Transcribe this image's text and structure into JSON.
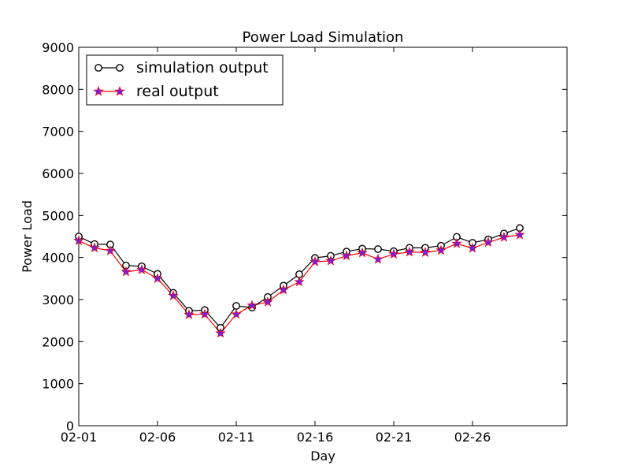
{
  "chart_data": {
    "type": "line",
    "title": "Power Load Simulation",
    "xlabel": "Day",
    "ylabel": "Power Load",
    "x": [
      "02-01",
      "02-02",
      "02-03",
      "02-04",
      "02-05",
      "02-06",
      "02-07",
      "02-08",
      "02-09",
      "02-10",
      "02-11",
      "02-12",
      "02-13",
      "02-14",
      "02-15",
      "02-16",
      "02-17",
      "02-18",
      "02-19",
      "02-20",
      "02-21",
      "02-22",
      "02-23",
      "02-24",
      "02-25",
      "02-26",
      "02-27",
      "02-28",
      "02-29"
    ],
    "xlim": [
      "02-01",
      "03-03"
    ],
    "x_ticks": [
      "02-01",
      "02-06",
      "02-11",
      "02-16",
      "02-21",
      "02-26"
    ],
    "ylim": [
      0,
      9000
    ],
    "y_ticks": [
      0,
      1000,
      2000,
      3000,
      4000,
      5000,
      6000,
      7000,
      8000,
      9000
    ],
    "grid": false,
    "legend_position": "top-left",
    "series": [
      {
        "name": "simulation output",
        "color": "#000000",
        "marker": "circle",
        "values": [
          4500,
          4320,
          4310,
          3810,
          3790,
          3610,
          3160,
          2730,
          2750,
          2330,
          2850,
          2810,
          3060,
          3330,
          3600,
          3990,
          4040,
          4140,
          4210,
          4200,
          4150,
          4230,
          4230,
          4280,
          4490,
          4350,
          4430,
          4570,
          4700
        ]
      },
      {
        "name": "real output",
        "color": "#ff0000",
        "marker": "star",
        "marker_color": "#7b1fd6",
        "values": [
          4400,
          4230,
          4160,
          3660,
          3710,
          3500,
          3090,
          2640,
          2650,
          2200,
          2650,
          2860,
          2940,
          3230,
          3420,
          3900,
          3920,
          4040,
          4110,
          3960,
          4080,
          4130,
          4120,
          4170,
          4330,
          4220,
          4360,
          4480,
          4540
        ]
      }
    ]
  }
}
